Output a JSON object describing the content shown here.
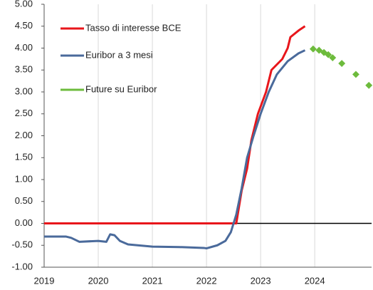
{
  "chart_data": {
    "type": "line",
    "xlim": [
      2019,
      2025.05
    ],
    "xticks": [
      2019,
      2020,
      2021,
      2022,
      2023,
      2024
    ],
    "ylim": [
      -1,
      5
    ],
    "yticks": [
      {
        "value": -1,
        "label": "-1.00"
      },
      {
        "value": -0.5,
        "label": "-0.50"
      },
      {
        "value": 0,
        "label": "0.00"
      },
      {
        "value": 0.5,
        "label": "0.50"
      },
      {
        "value": 1,
        "label": "1.00"
      },
      {
        "value": 1.5,
        "label": "1.50"
      },
      {
        "value": 2,
        "label": "2.00"
      },
      {
        "value": 2.5,
        "label": "2.50"
      },
      {
        "value": 3,
        "label": "3.00"
      },
      {
        "value": 3.5,
        "label": "3.50"
      },
      {
        "value": 4,
        "label": "4.00"
      },
      {
        "value": 4.5,
        "label": "4.50"
      },
      {
        "value": 5,
        "label": "5.00"
      }
    ],
    "vertical_grid": true,
    "series": [
      {
        "name": "Tasso di interesse BCE",
        "color": "#e8161b",
        "marker": "line",
        "x": [
          2019,
          2022.55,
          2022.65,
          2022.75,
          2022.83,
          2022.95,
          2023.1,
          2023.2,
          2023.4,
          2023.5,
          2023.55,
          2023.7,
          2023.82
        ],
        "values": [
          0,
          0,
          0.75,
          1.25,
          1.9,
          2.5,
          3.0,
          3.5,
          3.75,
          4.0,
          4.25,
          4.4,
          4.5
        ]
      },
      {
        "name": "Euribor a 3 mesi",
        "color": "#4a6a9b",
        "marker": "line",
        "x": [
          2019,
          2019.4,
          2019.5,
          2019.65,
          2020.0,
          2020.15,
          2020.22,
          2020.3,
          2020.4,
          2020.55,
          2021.0,
          2021.5,
          2021.95,
          2022.0,
          2022.2,
          2022.35,
          2022.45,
          2022.55,
          2022.65,
          2022.75,
          2022.87,
          2023.0,
          2023.15,
          2023.3,
          2023.5,
          2023.7,
          2023.82
        ],
        "values": [
          -0.3,
          -0.3,
          -0.33,
          -0.42,
          -0.4,
          -0.42,
          -0.25,
          -0.27,
          -0.4,
          -0.48,
          -0.53,
          -0.54,
          -0.56,
          -0.57,
          -0.5,
          -0.4,
          -0.2,
          0.2,
          0.8,
          1.5,
          2.0,
          2.5,
          3.0,
          3.4,
          3.7,
          3.88,
          3.95
        ]
      },
      {
        "name": "Future su Euribor",
        "color": "#6dbb3c",
        "marker": "dot",
        "x": [
          2023.97,
          2024.08,
          2024.17,
          2024.25,
          2024.33,
          2024.5,
          2024.76,
          2025.0
        ],
        "values": [
          3.98,
          3.95,
          3.9,
          3.85,
          3.78,
          3.65,
          3.4,
          3.15
        ]
      }
    ]
  }
}
